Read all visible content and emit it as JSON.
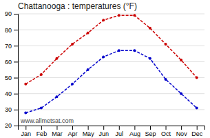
{
  "chart_data": {
    "type": "line",
    "title": "Chattanooga : temperatures (°F)",
    "categories": [
      "Jan",
      "Feb",
      "Mar",
      "Apr",
      "May",
      "Jun",
      "Jul",
      "Aug",
      "Sep",
      "Oct",
      "Nov",
      "Dec"
    ],
    "series": [
      {
        "color": "#cc0000",
        "marker": "circle",
        "line_style": "dashed",
        "values": [
          46,
          52,
          62,
          71,
          78,
          86,
          89,
          89,
          81,
          71,
          61,
          50
        ]
      },
      {
        "color": "#0000cc",
        "marker": "circle",
        "line_style": "dashed",
        "values": [
          28,
          31,
          38,
          46,
          55,
          63,
          67,
          67,
          62,
          49,
          40,
          31
        ]
      }
    ],
    "ylim": [
      20,
      90
    ],
    "yticks": [
      20,
      30,
      40,
      50,
      60,
      70,
      80,
      90
    ],
    "grid": true,
    "annotation": "www.allmetsat.com"
  }
}
